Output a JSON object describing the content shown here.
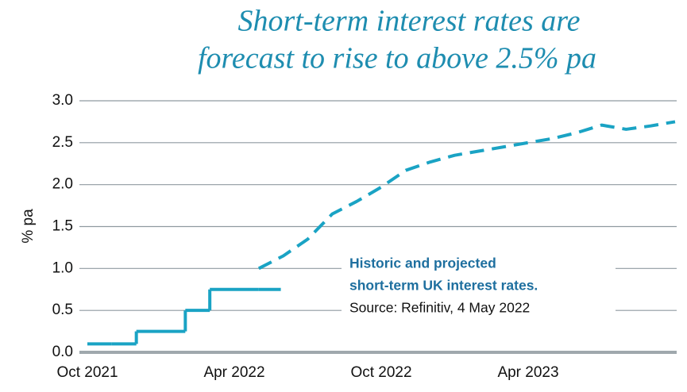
{
  "chart_data": {
    "type": "line",
    "title": [
      "Short-term interest rates are",
      "forecast to rise to above 2.5% pa"
    ],
    "y_label": "% pa",
    "annotation": [
      "Historic and projected",
      "short-term UK interest rates.",
      "Source: Refinitiv, 4 May 2022"
    ],
    "x": [
      "2021-10",
      "2021-11",
      "2021-12",
      "2022-01",
      "2022-02",
      "2022-03",
      "2022-04",
      "2022-05",
      "2022-06",
      "2022-07",
      "2022-08",
      "2022-09",
      "2022-10",
      "2022-11",
      "2022-12",
      "2023-01",
      "2023-02",
      "2023-03",
      "2023-04",
      "2023-05",
      "2023-06",
      "2023-07",
      "2023-08",
      "2023-09",
      "2023-10"
    ],
    "series": [
      {
        "name": "Historic",
        "color": "#1aa3c4",
        "step": true,
        "dashed": false,
        "values": [
          0.1,
          0.1,
          0.25,
          0.25,
          0.5,
          0.75,
          0.75,
          0.75,
          null,
          null,
          null,
          null,
          null,
          null,
          null,
          null,
          null,
          null,
          null,
          null,
          null,
          null,
          null,
          null,
          null
        ]
      },
      {
        "name": "Projected",
        "color": "#1aa3c4",
        "step": false,
        "dashed": true,
        "values": [
          null,
          null,
          null,
          null,
          null,
          null,
          null,
          1.0,
          1.15,
          1.35,
          1.65,
          1.8,
          1.97,
          2.17,
          2.27,
          2.35,
          2.4,
          2.45,
          2.5,
          2.55,
          2.62,
          2.71,
          2.66,
          2.7,
          2.75
        ]
      }
    ],
    "xlim": [
      "2021-10",
      "2023-10"
    ],
    "xticks": [
      {
        "value": "2021-10",
        "label": "Oct 2021"
      },
      {
        "value": "2022-04",
        "label": "Apr 2022"
      },
      {
        "value": "2022-10",
        "label": "Oct 2022"
      },
      {
        "value": "2023-04",
        "label": "Apr 2023"
      }
    ],
    "ylim": [
      0,
      3
    ],
    "yticks": [
      {
        "value": 0,
        "label": "0.0"
      },
      0.5,
      {
        "value": 1,
        "label": "1.0"
      },
      1.5,
      {
        "value": 2,
        "label": "2.0"
      },
      2.5,
      {
        "value": 3,
        "label": "3.0"
      }
    ],
    "grid": true
  }
}
